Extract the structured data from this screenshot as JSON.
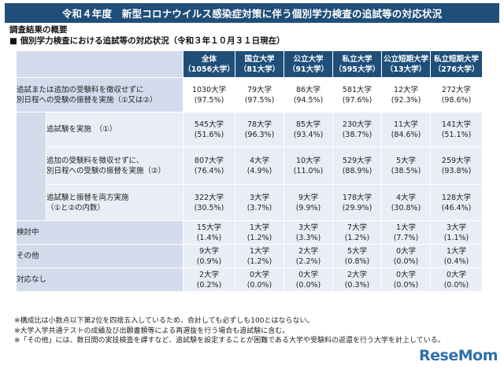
{
  "title": "令和４年度　新型コロナウイルス感染症対策に伴う個別学力検査の追試等の対応状況",
  "section_label": "調査結果の概要",
  "sub_label": "■ 個別学力検査における追試等の対応状況（令和３年１０月３１日現在）",
  "columns": [
    {
      "name": "全体",
      "count": "（1056大学）"
    },
    {
      "name": "国立大学",
      "count": "（81大学）"
    },
    {
      "name": "公立大学",
      "count": "（91大学）"
    },
    {
      "name": "私立大学",
      "count": "（595大学）"
    },
    {
      "name": "公立短期大学",
      "count": "（13大学）"
    },
    {
      "name": "私立短期大学",
      "count": "（276大学）"
    }
  ],
  "rows": [
    {
      "label_l1": "追試または追加の受験料を徴収せずに",
      "label_l2": "別日程への受験の振替を実施（①又は②）",
      "cells": [
        {
          "count": "1030大学",
          "pct": "(97.5%)"
        },
        {
          "count": "79大学",
          "pct": "(97.5%)"
        },
        {
          "count": "86大学",
          "pct": "(94.5%)"
        },
        {
          "count": "581大学",
          "pct": "(97.6%)"
        },
        {
          "count": "12大学",
          "pct": "(92.3%)"
        },
        {
          "count": "272大学",
          "pct": "(98.6%)"
        }
      ]
    },
    {
      "label_l1": "追試験を実施　（①）",
      "label_l2": "",
      "cells": [
        {
          "count": "545大学",
          "pct": "(51.6%)"
        },
        {
          "count": "78大学",
          "pct": "(96.3%)"
        },
        {
          "count": "85大学",
          "pct": "(93.4%)"
        },
        {
          "count": "230大学",
          "pct": "(38.7%)"
        },
        {
          "count": "11大学",
          "pct": "(84.6%)"
        },
        {
          "count": "141大学",
          "pct": "(51.1%)"
        }
      ]
    },
    {
      "label_l1": "追加の受験料を徴収せずに、",
      "label_l2": "別日程への受験の振替を実施（②）",
      "cells": [
        {
          "count": "807大学",
          "pct": "(76.4%)"
        },
        {
          "count": "4大学",
          "pct": "(4.9%)"
        },
        {
          "count": "10大学",
          "pct": "(11.0%)"
        },
        {
          "count": "529大学",
          "pct": "(88.9%)"
        },
        {
          "count": "5大学",
          "pct": "(38.5%)"
        },
        {
          "count": "259大学",
          "pct": "(93.8%)"
        }
      ]
    },
    {
      "label_l1": "追試験と振替を両方実施",
      "label_l2": "（①と②の内数）",
      "cells": [
        {
          "count": "322大学",
          "pct": "(30.5%)"
        },
        {
          "count": "3大学",
          "pct": "(3.7%)"
        },
        {
          "count": "9大学",
          "pct": "(9.9%)"
        },
        {
          "count": "178大学",
          "pct": "(29.9%)"
        },
        {
          "count": "4大学",
          "pct": "(30.8%)"
        },
        {
          "count": "128大学",
          "pct": "(46.4%)"
        }
      ]
    },
    {
      "label_l1": "検討中",
      "label_l2": "",
      "cells": [
        {
          "count": "15大学",
          "pct": "(1.4%)"
        },
        {
          "count": "1大学",
          "pct": "(1.2%)"
        },
        {
          "count": "3大学",
          "pct": "(3.3%)"
        },
        {
          "count": "7大学",
          "pct": "(1.2%)"
        },
        {
          "count": "1大学",
          "pct": "(7.7%)"
        },
        {
          "count": "3大学",
          "pct": "(1.1%)"
        }
      ]
    },
    {
      "label_l1": "その他",
      "label_l2": "",
      "cells": [
        {
          "count": "9大学",
          "pct": "(0.9%)"
        },
        {
          "count": "1大学",
          "pct": "(1.2%)"
        },
        {
          "count": "2大学",
          "pct": "(2.2%)"
        },
        {
          "count": "5大学",
          "pct": "(0.8%)"
        },
        {
          "count": "0大学",
          "pct": "(0.0%)"
        },
        {
          "count": "1大学",
          "pct": "(0.4%)"
        }
      ]
    },
    {
      "label_l1": "対応なし",
      "label_l2": "",
      "cells": [
        {
          "count": "2大学",
          "pct": "(0.2%)"
        },
        {
          "count": "0大学",
          "pct": "(0.0%)"
        },
        {
          "count": "0大学",
          "pct": "(0.0%)"
        },
        {
          "count": "2大学",
          "pct": "(0.3%)"
        },
        {
          "count": "0大学",
          "pct": "(0.0%)"
        },
        {
          "count": "0大学",
          "pct": "(0.0%)"
        }
      ]
    }
  ],
  "notes": [
    "※構成比は小数点以下第2位を四捨五入しているため、合計しても必ずしも100とはならない。",
    "※大学入学共通テストの成績及び出願書類等による再選抜を行う場合も追試験に含む。",
    "※「その他」には、数日間の実技検査を課すなど、追試験を設定することが困難である大学や受験料の返還を行う大学を計上している。"
  ],
  "logo": "ReseMom",
  "colors": {
    "header": "#1f4e79",
    "label_bg": "#d3dcec",
    "cell_bg": "#e8edf6"
  }
}
